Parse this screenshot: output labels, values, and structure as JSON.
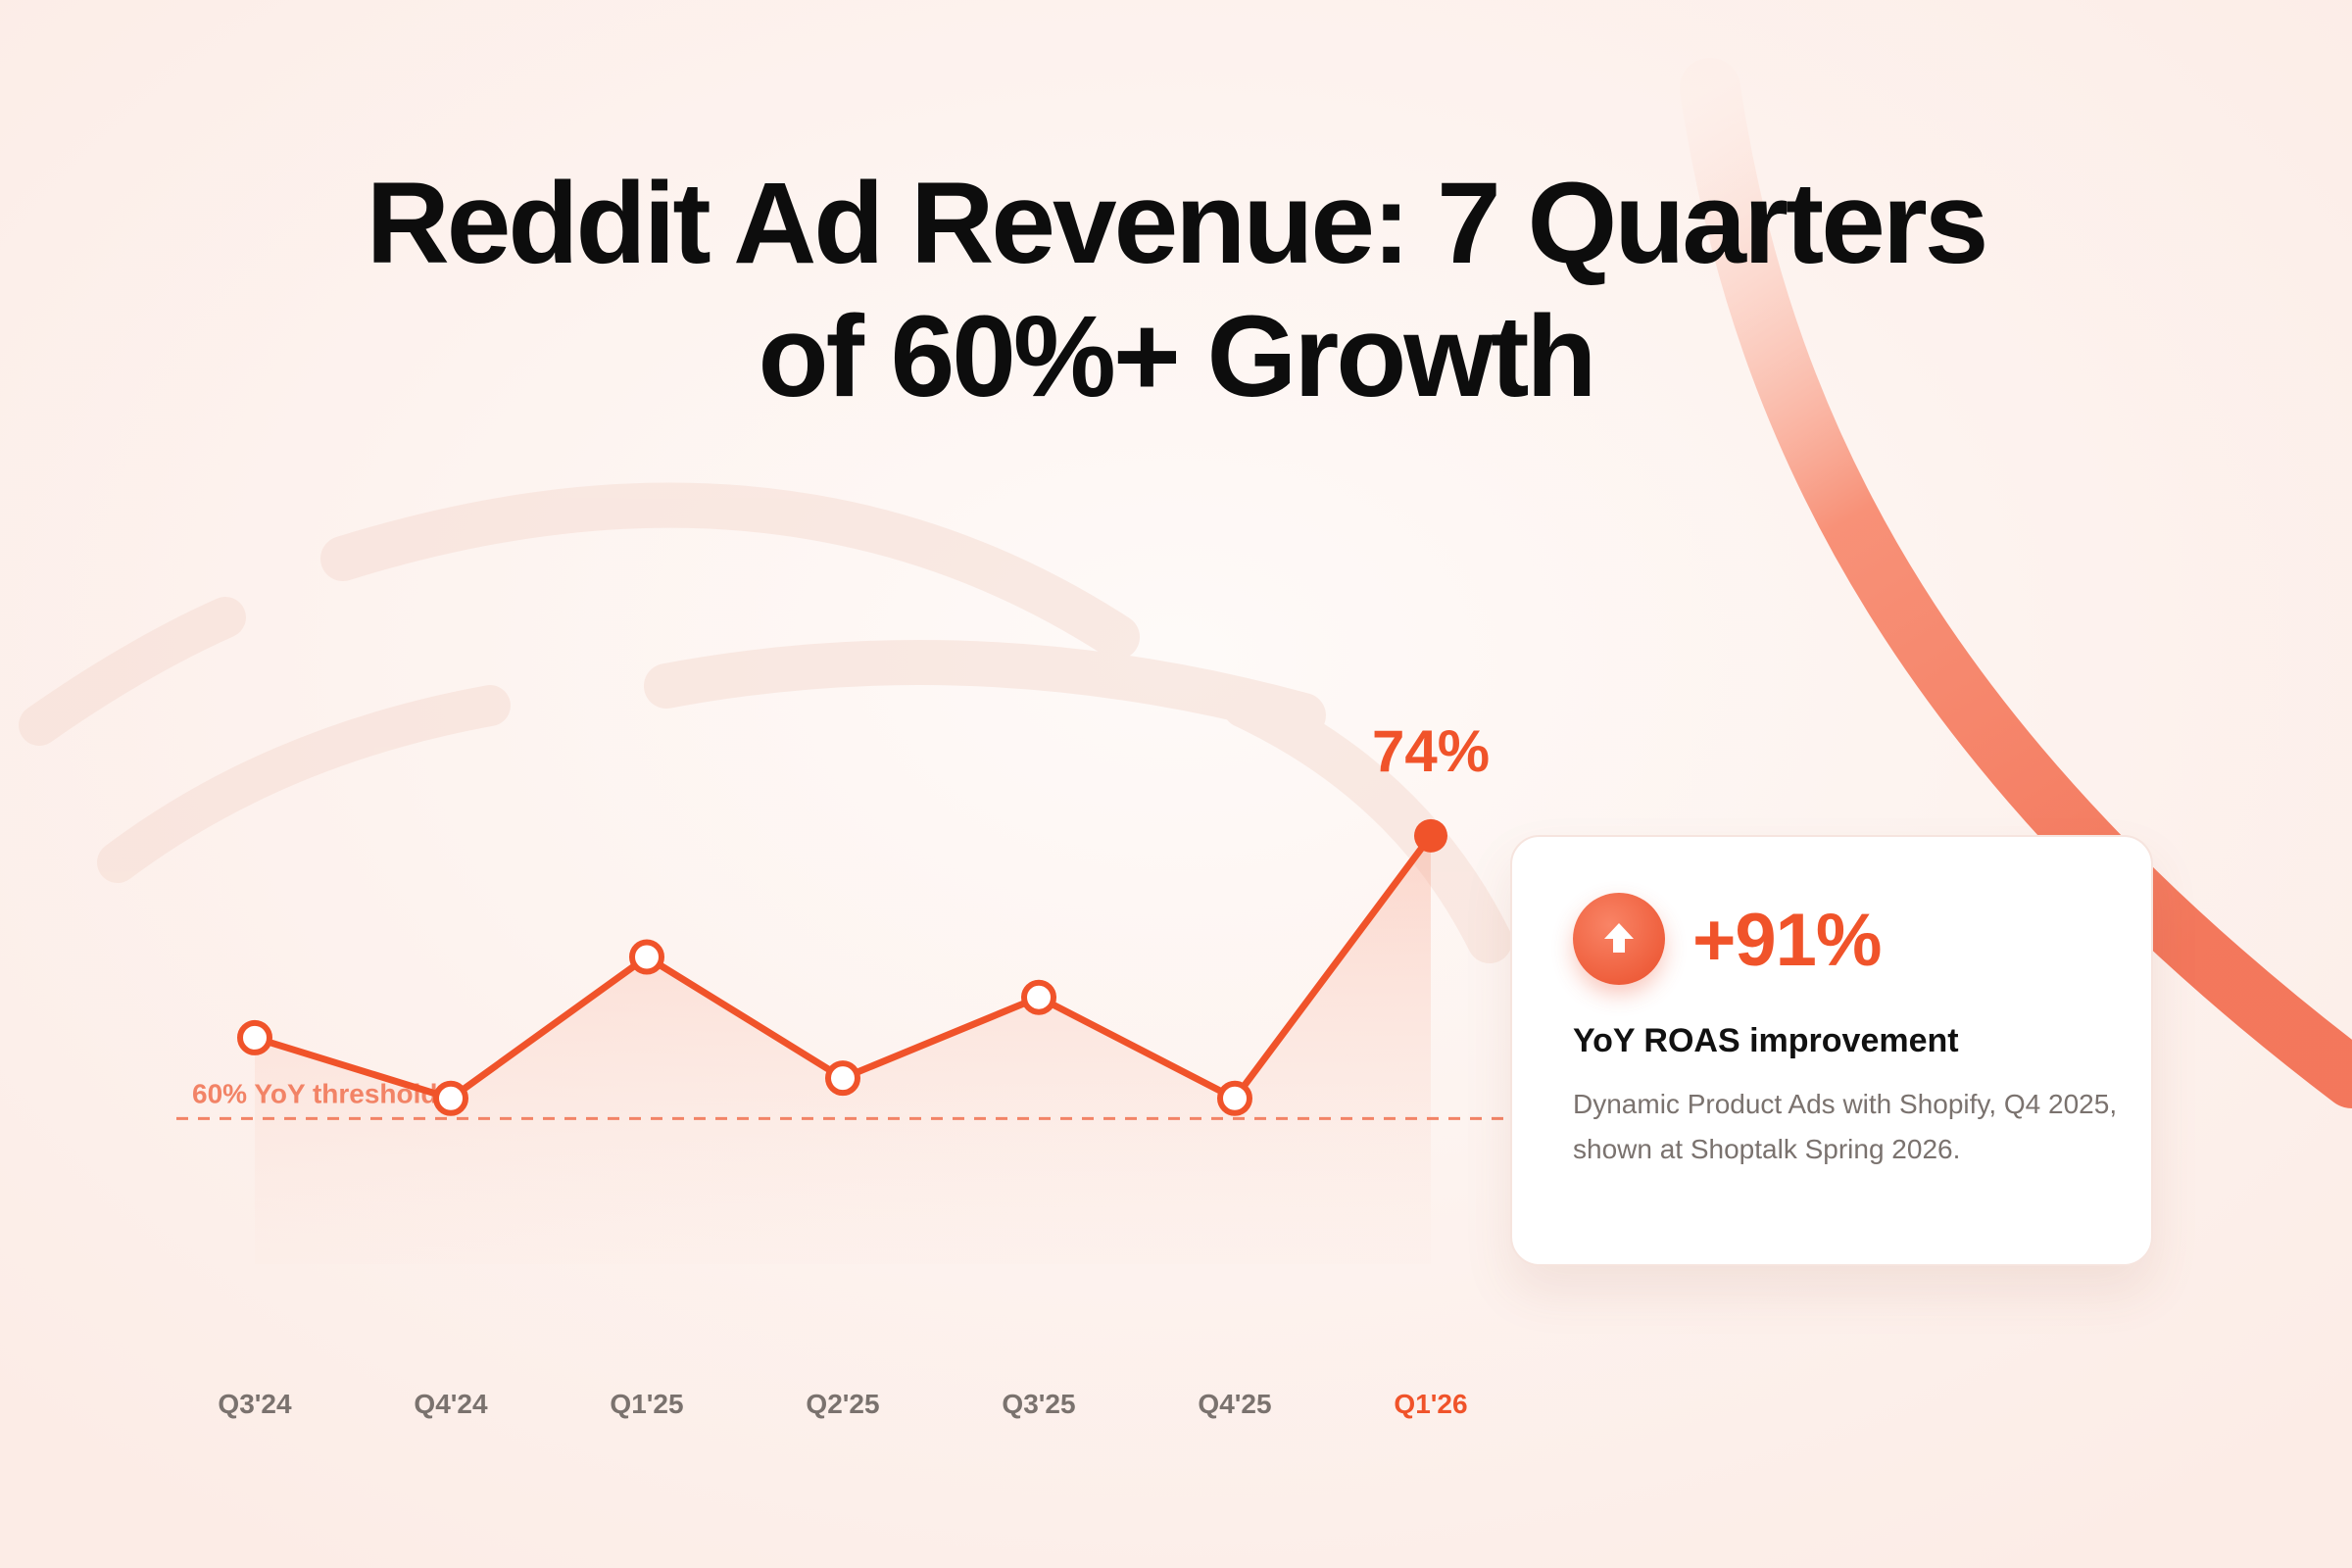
{
  "title_line1": "Reddit Ad Revenue: 7 Quarters",
  "title_line2": "of 60%+ Growth",
  "chart_data": {
    "type": "line",
    "categories": [
      "Q3'24",
      "Q4'24",
      "Q1'25",
      "Q2'25",
      "Q3'25",
      "Q4'25",
      "Q1'26"
    ],
    "series": [
      {
        "values": [
          64,
          61,
          68,
          62,
          66,
          61,
          74
        ]
      }
    ],
    "ylim": [
      54,
      77
    ],
    "threshold": {
      "value": 60,
      "label": "60% YoY threshold"
    },
    "highlight": {
      "category": "Q1'26",
      "label": "74%"
    },
    "grid": false,
    "colors": {
      "line": "#f0532a",
      "threshold": "#f28366",
      "tick": "#7a726e",
      "highlight": "#f0532a"
    }
  },
  "callout": {
    "icon": "arrow-up-icon",
    "value": "+91%",
    "label": "YoY ROAS improvement",
    "description": "Dynamic Product Ads with Shopify, Q4 2025, shown at Shoptalk Spring 2026."
  }
}
